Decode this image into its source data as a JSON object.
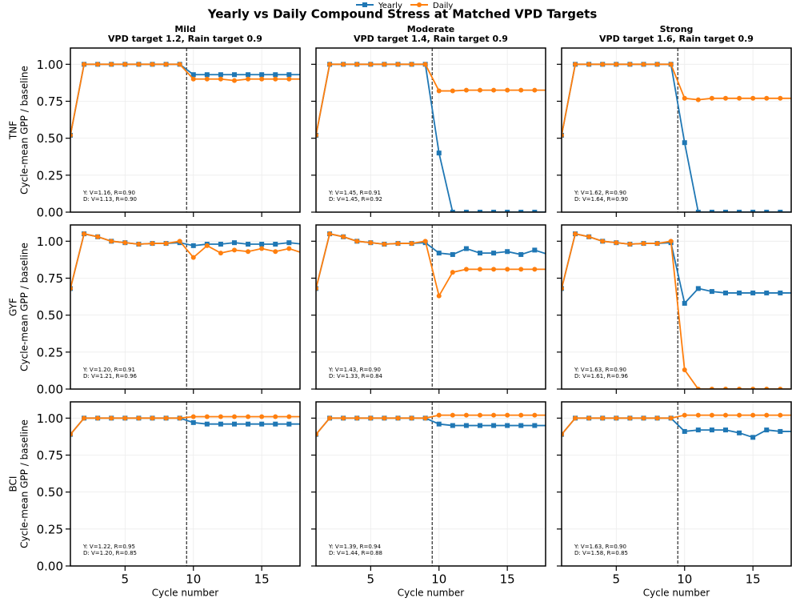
{
  "title": "Yearly vs Daily Compound Stress at Matched VPD Targets",
  "chart_data": [
    {
      "type": "line",
      "title": "Mild",
      "subtitle": "VPD target 1.2, Rain target 0.9",
      "ylabel": [
        "TNF",
        "Cycle-mean GPP / baseline"
      ],
      "x": [
        1,
        2,
        3,
        4,
        5,
        6,
        7,
        8,
        9,
        10,
        11,
        12,
        13,
        14,
        15,
        16,
        17,
        18
      ],
      "xlim": [
        1,
        17.8
      ],
      "ylim": [
        0,
        1.11
      ],
      "yticks": [
        {
          "value": 0,
          "label": "0.00"
        },
        {
          "value": 0.25,
          "label": "0.25"
        },
        {
          "value": 0.5,
          "label": "0.50"
        },
        {
          "value": 0.75,
          "label": "0.75"
        },
        {
          "value": 1,
          "label": "1.00"
        }
      ],
      "vline": 9.5,
      "grid": true,
      "annotations": [
        "Y: V=1.16, R=0.90",
        "D: V=1.13, R=0.90"
      ],
      "series": [
        {
          "name": "Yearly",
          "color": "#1f77b4",
          "values": [
            0.52,
            1.0,
            1.0,
            1.0,
            1.0,
            1.0,
            1.0,
            1.0,
            1.0,
            0.93,
            0.93,
            0.93,
            0.93,
            0.93,
            0.93,
            0.93,
            0.93,
            0.93
          ]
        },
        {
          "name": "Daily",
          "color": "#ff7f0e",
          "values": [
            0.52,
            1.0,
            1.0,
            1.0,
            1.0,
            1.0,
            1.0,
            1.0,
            1.0,
            0.9,
            0.9,
            0.9,
            0.89,
            0.9,
            0.9,
            0.9,
            0.9,
            0.9
          ]
        }
      ]
    },
    {
      "type": "line",
      "title": "Moderate",
      "subtitle": "VPD target 1.4, Rain target 0.9",
      "x": [
        1,
        2,
        3,
        4,
        5,
        6,
        7,
        8,
        9,
        10,
        11,
        12,
        13,
        14,
        15,
        16,
        17,
        18
      ],
      "xlim": [
        1,
        17.8
      ],
      "ylim": [
        0,
        1.11
      ],
      "vline": 9.5,
      "grid": true,
      "annotations": [
        "Y: V=1.45, R=0.91",
        "D: V=1.45, R=0.92"
      ],
      "series": [
        {
          "name": "Yearly",
          "color": "#1f77b4",
          "values": [
            0.52,
            1.0,
            1.0,
            1.0,
            1.0,
            1.0,
            1.0,
            1.0,
            1.0,
            0.4,
            0,
            0,
            0,
            0,
            0,
            0,
            0,
            0
          ]
        },
        {
          "name": "Daily",
          "color": "#ff7f0e",
          "values": [
            0.52,
            1.0,
            1.0,
            1.0,
            1.0,
            1.0,
            1.0,
            1.0,
            1.0,
            0.82,
            0.82,
            0.825,
            0.825,
            0.825,
            0.825,
            0.825,
            0.825,
            0.825
          ]
        }
      ]
    },
    {
      "type": "line",
      "title": "Strong",
      "subtitle": "VPD target 1.6, Rain target 0.9",
      "x": [
        1,
        2,
        3,
        4,
        5,
        6,
        7,
        8,
        9,
        10,
        11,
        12,
        13,
        14,
        15,
        16,
        17,
        18
      ],
      "xlim": [
        1,
        17.8
      ],
      "ylim": [
        0,
        1.11
      ],
      "vline": 9.5,
      "grid": true,
      "annotations": [
        "Y: V=1.62, R=0.90",
        "D: V=1.64, R=0.90"
      ],
      "series": [
        {
          "name": "Yearly",
          "color": "#1f77b4",
          "values": [
            0.52,
            1.0,
            1.0,
            1.0,
            1.0,
            1.0,
            1.0,
            1.0,
            1.0,
            0.47,
            0,
            0,
            0,
            0,
            0,
            0,
            0,
            0
          ]
        },
        {
          "name": "Daily",
          "color": "#ff7f0e",
          "values": [
            0.52,
            1.0,
            1.0,
            1.0,
            1.0,
            1.0,
            1.0,
            1.0,
            1.0,
            0.77,
            0.76,
            0.77,
            0.77,
            0.77,
            0.77,
            0.77,
            0.77,
            0.77
          ]
        }
      ]
    },
    {
      "type": "line",
      "ylabel": [
        "GYF",
        "Cycle-mean GPP / baseline"
      ],
      "x": [
        1,
        2,
        3,
        4,
        5,
        6,
        7,
        8,
        9,
        10,
        11,
        12,
        13,
        14,
        15,
        16,
        17,
        18
      ],
      "xlim": [
        1,
        17.8
      ],
      "ylim": [
        0,
        1.11
      ],
      "yticks": [
        {
          "value": 0,
          "label": "0.00"
        },
        {
          "value": 0.25,
          "label": "0.25"
        },
        {
          "value": 0.5,
          "label": "0.50"
        },
        {
          "value": 0.75,
          "label": "0.75"
        },
        {
          "value": 1,
          "label": "1.00"
        }
      ],
      "vline": 9.5,
      "grid": true,
      "annotations": [
        "Y: V=1.20, R=0.91",
        "D: V=1.21, R=0.96"
      ],
      "series": [
        {
          "name": "Yearly",
          "color": "#1f77b4",
          "values": [
            0.68,
            1.05,
            1.03,
            1.0,
            0.99,
            0.98,
            0.985,
            0.985,
            0.99,
            0.97,
            0.98,
            0.98,
            0.99,
            0.98,
            0.98,
            0.98,
            0.99,
            0.98
          ]
        },
        {
          "name": "Daily",
          "color": "#ff7f0e",
          "values": [
            0.68,
            1.05,
            1.03,
            1.0,
            0.99,
            0.98,
            0.985,
            0.985,
            1.0,
            0.89,
            0.97,
            0.92,
            0.94,
            0.93,
            0.95,
            0.93,
            0.95,
            0.92
          ]
        }
      ]
    },
    {
      "type": "line",
      "x": [
        1,
        2,
        3,
        4,
        5,
        6,
        7,
        8,
        9,
        10,
        11,
        12,
        13,
        14,
        15,
        16,
        17,
        18
      ],
      "xlim": [
        1,
        17.8
      ],
      "ylim": [
        0,
        1.11
      ],
      "vline": 9.5,
      "grid": true,
      "annotations": [
        "Y: V=1.43, R=0.90",
        "D: V=1.33, R=0.84"
      ],
      "series": [
        {
          "name": "Yearly",
          "color": "#1f77b4",
          "values": [
            0.68,
            1.05,
            1.03,
            1.0,
            0.99,
            0.98,
            0.985,
            0.985,
            0.99,
            0.92,
            0.91,
            0.95,
            0.92,
            0.92,
            0.93,
            0.91,
            0.94,
            0.91
          ]
        },
        {
          "name": "Daily",
          "color": "#ff7f0e",
          "values": [
            0.68,
            1.05,
            1.03,
            1.0,
            0.99,
            0.98,
            0.985,
            0.985,
            1.0,
            0.63,
            0.79,
            0.81,
            0.81,
            0.81,
            0.81,
            0.81,
            0.81,
            0.81
          ]
        }
      ]
    },
    {
      "type": "line",
      "x": [
        1,
        2,
        3,
        4,
        5,
        6,
        7,
        8,
        9,
        10,
        11,
        12,
        13,
        14,
        15,
        16,
        17,
        18
      ],
      "xlim": [
        1,
        17.8
      ],
      "ylim": [
        0,
        1.11
      ],
      "vline": 9.5,
      "grid": true,
      "annotations": [
        "Y: V=1.63, R=0.90",
        "D: V=1.61, R=0.96"
      ],
      "series": [
        {
          "name": "Yearly",
          "color": "#1f77b4",
          "values": [
            0.68,
            1.05,
            1.03,
            1.0,
            0.99,
            0.98,
            0.985,
            0.985,
            0.99,
            0.58,
            0.68,
            0.66,
            0.65,
            0.65,
            0.65,
            0.65,
            0.65,
            0.65
          ]
        },
        {
          "name": "Daily",
          "color": "#ff7f0e",
          "values": [
            0.68,
            1.05,
            1.03,
            1.0,
            0.99,
            0.98,
            0.985,
            0.985,
            1.0,
            0.13,
            0,
            0,
            0,
            0,
            0,
            0,
            0,
            0
          ]
        }
      ]
    },
    {
      "type": "line",
      "ylabel": [
        "BCI",
        "Cycle-mean GPP / baseline"
      ],
      "xlabel": "Cycle number",
      "x": [
        1,
        2,
        3,
        4,
        5,
        6,
        7,
        8,
        9,
        10,
        11,
        12,
        13,
        14,
        15,
        16,
        17,
        18
      ],
      "xlim": [
        1,
        17.8
      ],
      "ylim": [
        0,
        1.11
      ],
      "xticks": [
        5,
        10,
        15
      ],
      "yticks": [
        {
          "value": 0,
          "label": "0.00"
        },
        {
          "value": 0.25,
          "label": "0.25"
        },
        {
          "value": 0.5,
          "label": "0.50"
        },
        {
          "value": 0.75,
          "label": "0.75"
        },
        {
          "value": 1,
          "label": "1.00"
        }
      ],
      "vline": 9.5,
      "grid": true,
      "annotations": [
        "Y: V=1.22, R=0.95",
        "D: V=1.20, R=0.85"
      ],
      "series": [
        {
          "name": "Yearly",
          "color": "#1f77b4",
          "values": [
            0.89,
            1.0,
            1.0,
            1.0,
            1.0,
            1.0,
            1.0,
            1.0,
            1.0,
            0.97,
            0.96,
            0.96,
            0.96,
            0.96,
            0.96,
            0.96,
            0.96,
            0.96
          ]
        },
        {
          "name": "Daily",
          "color": "#ff7f0e",
          "values": [
            0.89,
            1.0,
            1.0,
            1.0,
            1.0,
            1.0,
            1.0,
            1.0,
            1.0,
            1.01,
            1.01,
            1.01,
            1.01,
            1.01,
            1.01,
            1.01,
            1.01,
            1.01
          ]
        }
      ]
    },
    {
      "type": "line",
      "xlabel": "Cycle number",
      "x": [
        1,
        2,
        3,
        4,
        5,
        6,
        7,
        8,
        9,
        10,
        11,
        12,
        13,
        14,
        15,
        16,
        17,
        18
      ],
      "xlim": [
        1,
        17.8
      ],
      "ylim": [
        0,
        1.11
      ],
      "xticks": [
        5,
        10,
        15
      ],
      "vline": 9.5,
      "grid": true,
      "annotations": [
        "Y: V=1.39, R=0.94",
        "D: V=1.44, R=0.88"
      ],
      "series": [
        {
          "name": "Yearly",
          "color": "#1f77b4",
          "values": [
            0.89,
            1.0,
            1.0,
            1.0,
            1.0,
            1.0,
            1.0,
            1.0,
            1.0,
            0.96,
            0.95,
            0.95,
            0.95,
            0.95,
            0.95,
            0.95,
            0.95,
            0.95
          ]
        },
        {
          "name": "Daily",
          "color": "#ff7f0e",
          "values": [
            0.89,
            1.0,
            1.0,
            1.0,
            1.0,
            1.0,
            1.0,
            1.0,
            1.0,
            1.02,
            1.02,
            1.02,
            1.02,
            1.02,
            1.02,
            1.02,
            1.02,
            1.02
          ]
        }
      ]
    },
    {
      "type": "line",
      "xlabel": "Cycle number",
      "x": [
        1,
        2,
        3,
        4,
        5,
        6,
        7,
        8,
        9,
        10,
        11,
        12,
        13,
        14,
        15,
        16,
        17,
        18
      ],
      "xlim": [
        1,
        17.8
      ],
      "ylim": [
        0,
        1.11
      ],
      "xticks": [
        5,
        10,
        15
      ],
      "vline": 9.5,
      "grid": true,
      "annotations": [
        "Y: V=1.63, R=0.90",
        "D: V=1.58, R=0.85"
      ],
      "series": [
        {
          "name": "Yearly",
          "color": "#1f77b4",
          "values": [
            0.89,
            1.0,
            1.0,
            1.0,
            1.0,
            1.0,
            1.0,
            1.0,
            1.0,
            0.91,
            0.92,
            0.92,
            0.92,
            0.9,
            0.87,
            0.92,
            0.91,
            0.91
          ]
        },
        {
          "name": "Daily",
          "color": "#ff7f0e",
          "values": [
            0.89,
            1.0,
            1.0,
            1.0,
            1.0,
            1.0,
            1.0,
            1.0,
            1.0,
            1.02,
            1.02,
            1.02,
            1.02,
            1.02,
            1.02,
            1.02,
            1.02,
            1.02
          ]
        }
      ]
    }
  ]
}
